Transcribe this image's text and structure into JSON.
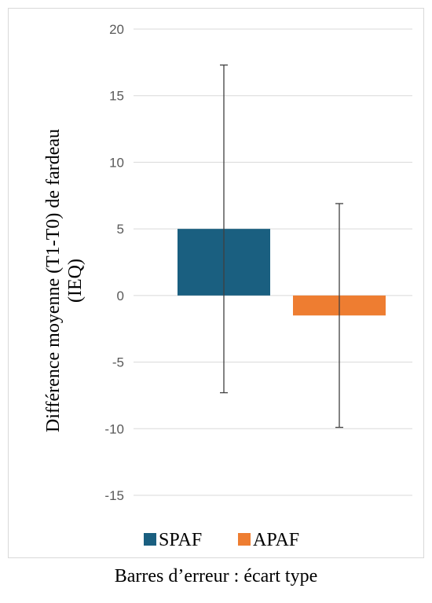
{
  "chart_data": {
    "type": "bar",
    "categories": [
      "SPAF",
      "APAF"
    ],
    "values": [
      5.0,
      -1.5
    ],
    "error_bars": [
      {
        "low": -7.3,
        "high": 17.3
      },
      {
        "low": -9.9,
        "high": 6.9
      }
    ],
    "colors": [
      "#1a5f80",
      "#ee7d31"
    ],
    "ylabel_lines": [
      "Différence moyenne (T1-T0) de fardeau",
      "(IEQ)"
    ],
    "ylim": [
      -15,
      20
    ],
    "yticks": [
      20,
      15,
      10,
      5,
      0,
      -5,
      -10,
      -15
    ],
    "grid": true,
    "legend": {
      "position": "bottom",
      "entries": [
        "SPAF",
        "APAF"
      ]
    }
  },
  "caption": "Barres d’erreur : écart type"
}
